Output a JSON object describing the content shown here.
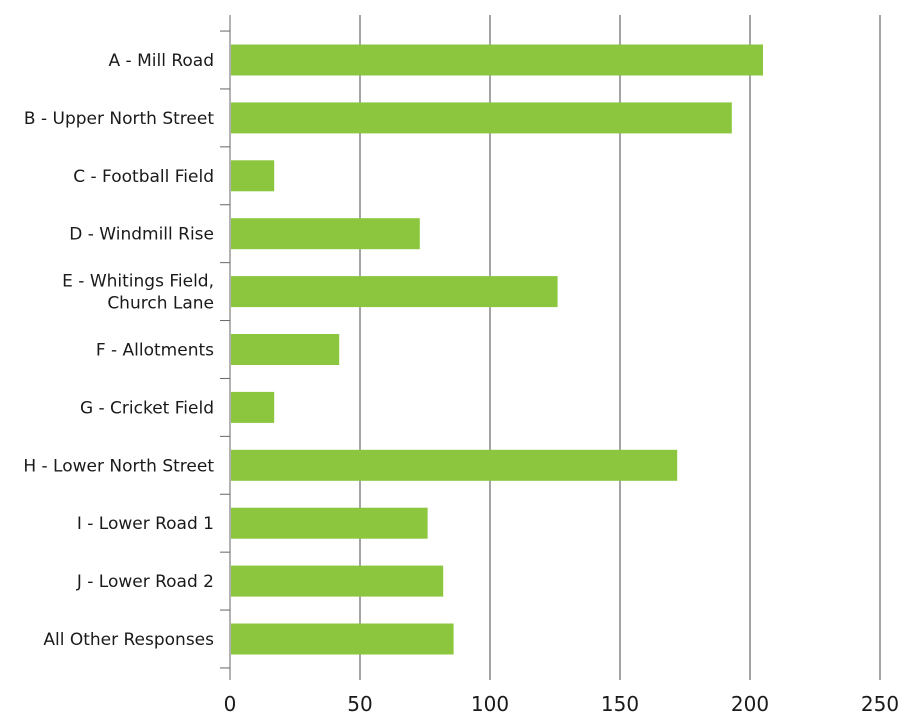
{
  "chart_data": {
    "type": "bar",
    "orientation": "horizontal",
    "title": "",
    "xlabel": "",
    "ylabel": "",
    "categories": [
      [
        "A - Mill Road"
      ],
      [
        "B - Upper North Street"
      ],
      [
        "C - Football Field"
      ],
      [
        "D - Windmill Rise"
      ],
      [
        "E - Whitings Field,",
        "Church Lane"
      ],
      [
        "F - Allotments"
      ],
      [
        "G - Cricket Field"
      ],
      [
        "H - Lower North Street"
      ],
      [
        "I - Lower Road 1"
      ],
      [
        "J - Lower Road 2"
      ],
      [
        "All Other Responses"
      ]
    ],
    "values": [
      205,
      193,
      17,
      73,
      126,
      42,
      17,
      172,
      76,
      82,
      86
    ],
    "xlim": [
      0,
      250
    ],
    "x_ticks": [
      0,
      50,
      100,
      150,
      200,
      250
    ],
    "grid": "vertical",
    "legend": "none",
    "colors": {
      "bar": "#8cc63f",
      "grid": "#4a4a4a",
      "axis": "#666666",
      "text": "#1a1a1a"
    }
  }
}
